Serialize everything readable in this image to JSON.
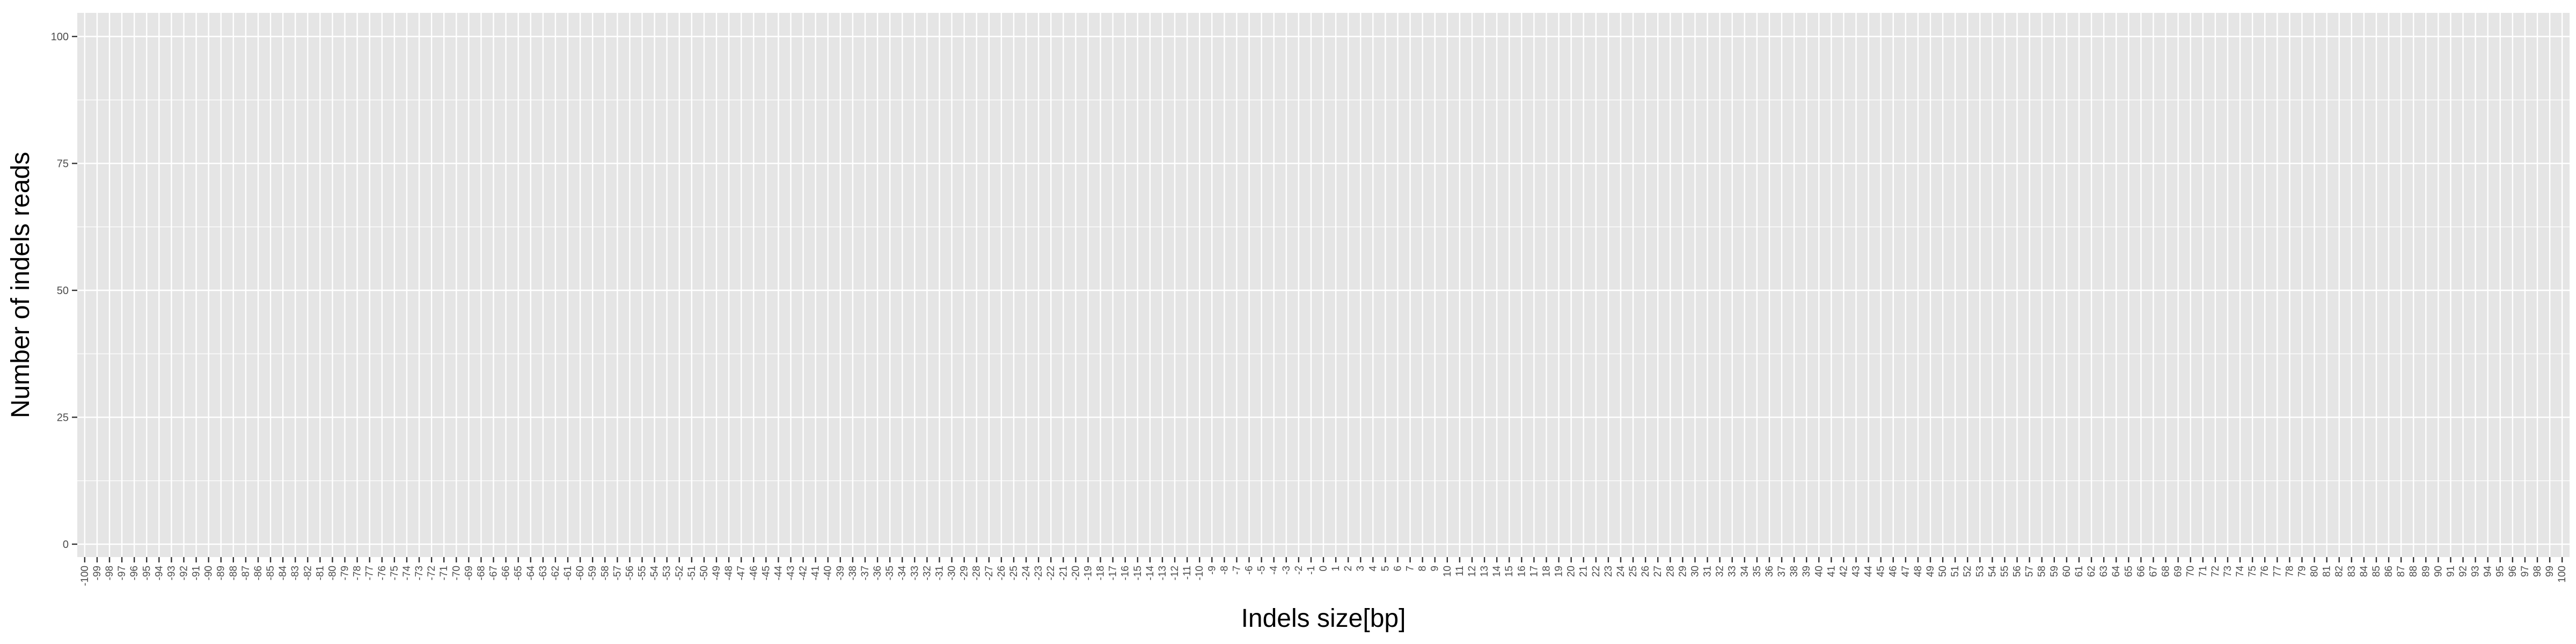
{
  "chart_data": {
    "type": "bar",
    "title": "",
    "xlabel": "Indels size[bp]",
    "ylabel": "Number of indels reads",
    "x_range": [
      -100,
      100
    ],
    "x_step": 1,
    "categories_note_free": true,
    "y_ticks": [
      "0",
      "25",
      "50",
      "75",
      "100"
    ],
    "ylim": [
      0,
      100
    ],
    "series": [
      {
        "values": []
      }
    ],
    "grid": true,
    "legend": "none"
  },
  "colors": {
    "panel_background": "#e5e5e5",
    "gridline": "#ffffff",
    "tick_mark": "#333333",
    "tick_label": "#4d4d4d"
  }
}
